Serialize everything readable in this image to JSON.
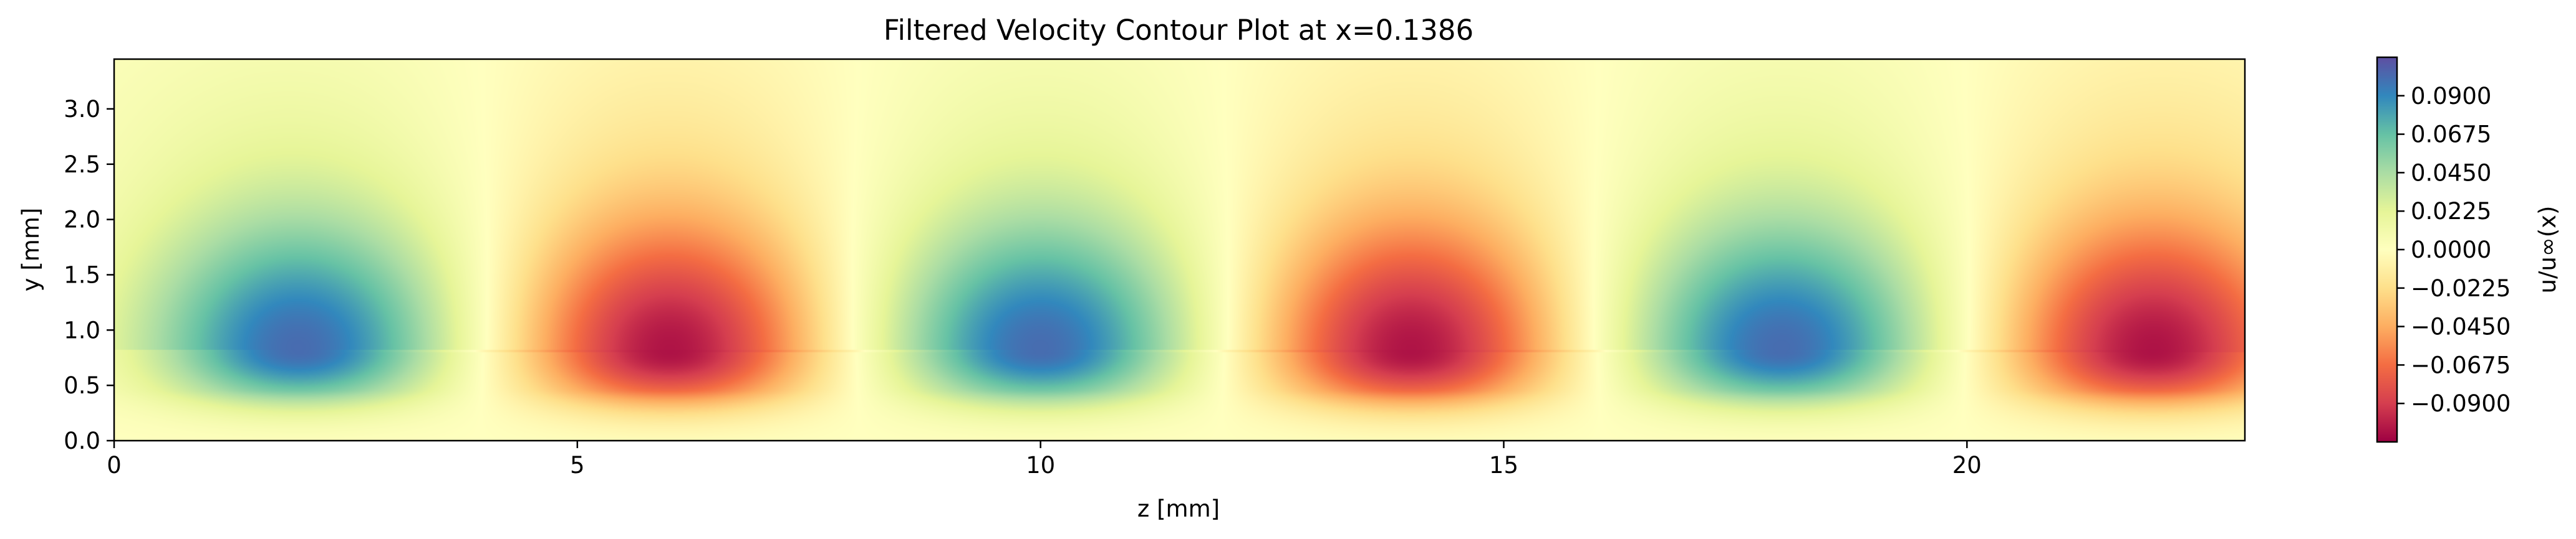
{
  "chart_data": {
    "type": "heatmap",
    "title": "Filtered Velocity Contour Plot at x=0.1386",
    "xlabel": "z [mm]",
    "ylabel": "y [mm]",
    "xlim": [
      0,
      23
    ],
    "ylim": [
      0,
      3.45
    ],
    "x_ticks": [
      0,
      5,
      10,
      15,
      20
    ],
    "x_tick_labels": [
      "0",
      "5",
      "10",
      "15",
      "20"
    ],
    "y_ticks": [
      0.0,
      0.5,
      1.0,
      1.5,
      2.0,
      2.5,
      3.0
    ],
    "y_tick_labels": [
      "0.0",
      "0.5",
      "1.0",
      "1.5",
      "2.0",
      "2.5",
      "3.0"
    ],
    "colormap": "Spectral",
    "colorbar": {
      "label": "u/u∞(x)",
      "vmin": -0.1125,
      "vmax": 0.1125,
      "ticks": [
        0.09,
        0.0675,
        0.045,
        0.0225,
        0.0,
        -0.0225,
        -0.045,
        -0.0675,
        -0.09
      ],
      "tick_labels": [
        "0.0900",
        "0.0675",
        "0.0450",
        "0.0225",
        "0.0000",
        "−0.0225",
        "−0.0450",
        "−0.0675",
        "−0.0900"
      ]
    },
    "field": {
      "description": "alternating streak pattern, period 8 mm in z",
      "peaks": [
        {
          "z": 2.0,
          "y": 0.82,
          "value": 0.1
        },
        {
          "z": 6.0,
          "y": 0.8,
          "value": -0.105
        },
        {
          "z": 10.0,
          "y": 0.82,
          "value": 0.1
        },
        {
          "z": 14.0,
          "y": 0.8,
          "value": -0.105
        },
        {
          "z": 18.0,
          "y": 0.82,
          "value": 0.1
        },
        {
          "z": 22.0,
          "y": 0.8,
          "value": -0.105
        }
      ]
    }
  }
}
